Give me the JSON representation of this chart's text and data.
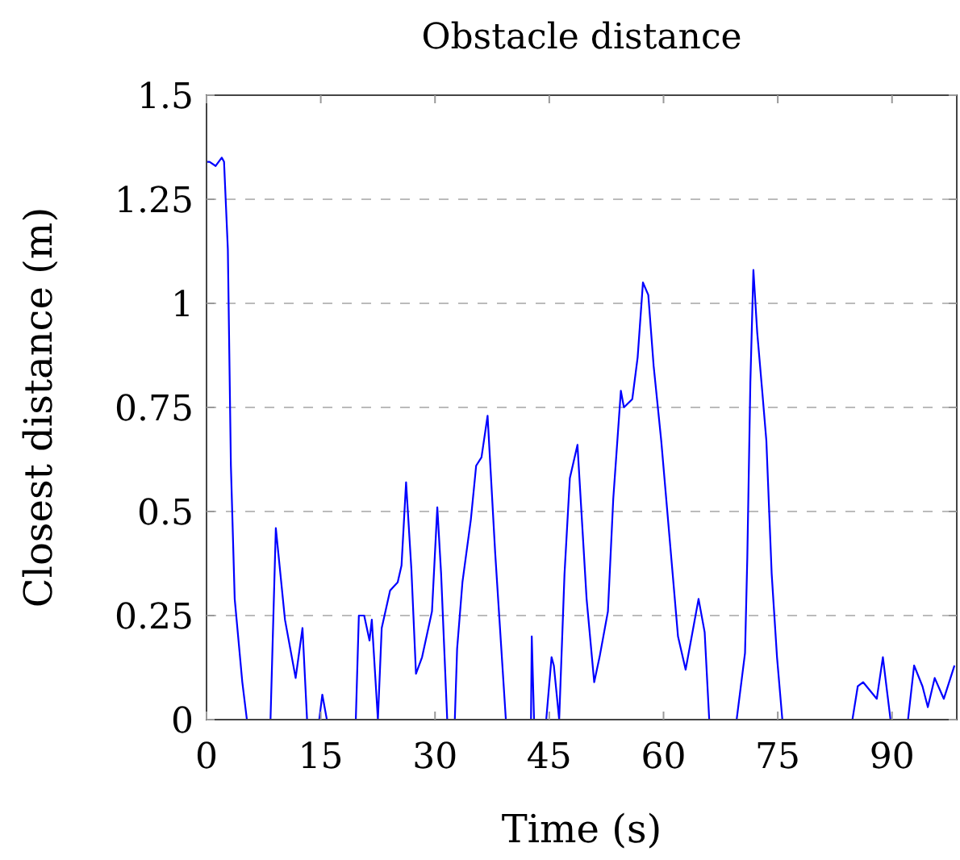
{
  "chart_data": {
    "type": "line",
    "title": "Obstacle distance",
    "xlabel": "Time (s)",
    "ylabel": "Closest distance (m)",
    "xlim": [
      0,
      98.5
    ],
    "ylim": [
      0,
      1.5
    ],
    "xticks": [
      0,
      15,
      30,
      45,
      60,
      75,
      90
    ],
    "yticks": [
      0,
      0.25,
      0.5,
      0.75,
      1,
      1.25,
      1.5
    ],
    "grid": "y",
    "line_style": "solid",
    "marker": "none",
    "series": [
      {
        "color": "#0000ff",
        "x": [
          0,
          0.4,
          1.2,
          2.0,
          2.3,
          2.8,
          3.2,
          3.7,
          4.7,
          5.3,
          8.4,
          9.1,
          10.3,
          11.7,
          12.6,
          13.2,
          14.8,
          15.2,
          15.8,
          19.6,
          20.0,
          20.7,
          21.4,
          21.7,
          22.5,
          23.0,
          24.1,
          25.1,
          25.6,
          26.2,
          26.9,
          27.5,
          28.3,
          29.6,
          30.3,
          30.8,
          31.6,
          32.6,
          32.9,
          33.6,
          34.7,
          35.4,
          36.1,
          36.9,
          37.9,
          39.3,
          42.6,
          42.7,
          43.0,
          44.6,
          45.3,
          45.6,
          46.3,
          47.0,
          47.7,
          48.7,
          49.9,
          50.9,
          51.6,
          52.7,
          53.4,
          54.4,
          54.8,
          55.9,
          56.6,
          57.3,
          58.0,
          58.7,
          59.7,
          61.2,
          61.9,
          62.9,
          63.6,
          64.6,
          65.4,
          66.0,
          69.6,
          70.7,
          71.0,
          71.4,
          71.8,
          72.3,
          73.0,
          73.5,
          74.2,
          74.9,
          75.6,
          84.8,
          85.5,
          86.2,
          88.0,
          88.8,
          89.4,
          89.8,
          92.1,
          92.9,
          94.0,
          94.7,
          95.6,
          96.8,
          98.2
        ],
        "values": [
          1.34,
          1.34,
          1.33,
          1.35,
          1.34,
          1.13,
          0.61,
          0.29,
          0.09,
          0,
          0,
          0.46,
          0.24,
          0.1,
          0.22,
          0,
          0,
          0.06,
          0,
          0,
          0.25,
          0.25,
          0.19,
          0.24,
          0,
          0.22,
          0.31,
          0.33,
          0.37,
          0.57,
          0.36,
          0.11,
          0.15,
          0.26,
          0.51,
          0.35,
          0,
          0,
          0.17,
          0.33,
          0.48,
          0.61,
          0.63,
          0.73,
          0.4,
          0,
          0,
          0.2,
          0,
          0,
          0.15,
          0.13,
          0,
          0.35,
          0.58,
          0.66,
          0.29,
          0.09,
          0.15,
          0.26,
          0.53,
          0.79,
          0.75,
          0.77,
          0.87,
          1.05,
          1.02,
          0.85,
          0.67,
          0.35,
          0.2,
          0.12,
          0.19,
          0.29,
          0.21,
          0,
          0,
          0.16,
          0.39,
          0.81,
          1.08,
          0.93,
          0.78,
          0.67,
          0.35,
          0.15,
          0,
          0,
          0.08,
          0.09,
          0.05,
          0.15,
          0.06,
          0,
          0,
          0.13,
          0.08,
          0.03,
          0.1,
          0.05,
          0.13
        ]
      }
    ]
  }
}
